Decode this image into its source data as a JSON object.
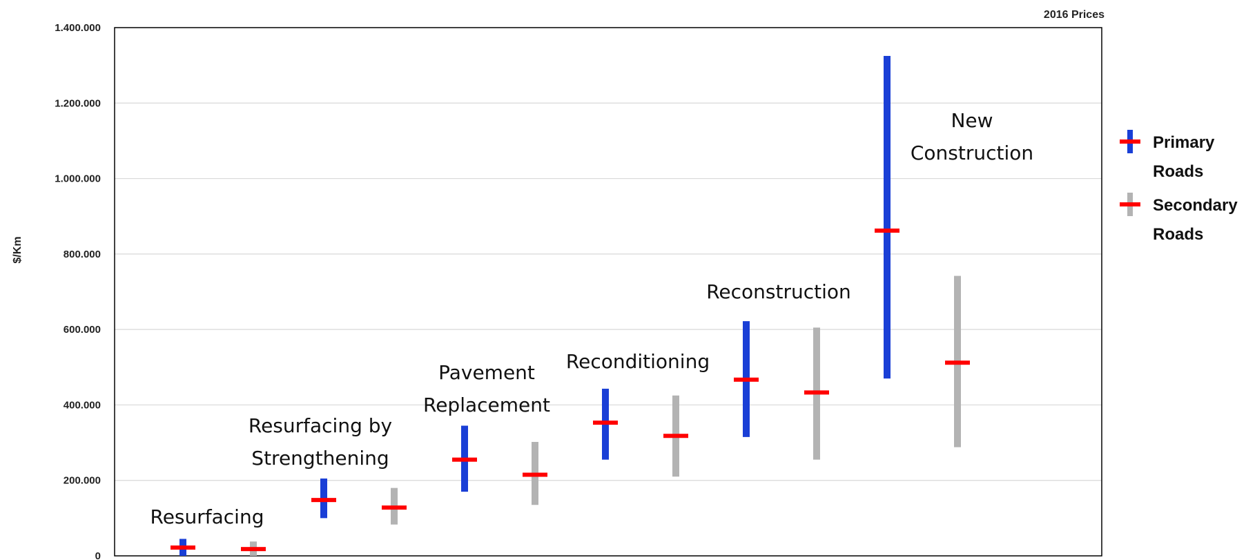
{
  "chart_data": {
    "type": "range-bar",
    "note": "2016 Prices",
    "ylabel": "$/Km",
    "ylim": [
      0,
      1400000
    ],
    "yticks": [
      0,
      200000,
      400000,
      600000,
      800000,
      1000000,
      1200000,
      1400000
    ],
    "ytick_labels": [
      "0",
      "200.000",
      "400.000",
      "600.000",
      "800.000",
      "1.000.000",
      "1.200.000",
      "1.400.000"
    ],
    "grid": true,
    "legend_position": "right",
    "colors": {
      "primary": "#1a3fd6",
      "secondary": "#b3b3b3",
      "marker": "#ff0000"
    },
    "groups": [
      {
        "label_lines": [
          "Resurfacing"
        ],
        "primary": {
          "min": 0,
          "max": 45000,
          "mean": 22000
        },
        "secondary": {
          "min": 0,
          "max": 38000,
          "mean": 18000
        }
      },
      {
        "label_lines": [
          "Resurfacing by",
          "Strengthening"
        ],
        "primary": {
          "min": 100000,
          "max": 205000,
          "mean": 148000
        },
        "secondary": {
          "min": 83000,
          "max": 180000,
          "mean": 128000
        }
      },
      {
        "label_lines": [
          "Pavement",
          "Replacement"
        ],
        "primary": {
          "min": 170000,
          "max": 345000,
          "mean": 255000
        },
        "secondary": {
          "min": 135000,
          "max": 302000,
          "mean": 215000
        }
      },
      {
        "label_lines": [
          "Reconditioning"
        ],
        "primary": {
          "min": 255000,
          "max": 443000,
          "mean": 353000
        },
        "secondary": {
          "min": 210000,
          "max": 425000,
          "mean": 318000
        }
      },
      {
        "label_lines": [
          "Reconstruction"
        ],
        "primary": {
          "min": 315000,
          "max": 622000,
          "mean": 467000
        },
        "secondary": {
          "min": 255000,
          "max": 605000,
          "mean": 433000
        }
      },
      {
        "label_lines": [
          "New",
          "Construction"
        ],
        "primary": {
          "min": 470000,
          "max": 1325000,
          "mean": 862000
        },
        "secondary": {
          "min": 288000,
          "max": 742000,
          "mean": 512000
        }
      }
    ],
    "legend": [
      {
        "key": "primary",
        "label_lines": [
          "Primary",
          "Roads"
        ]
      },
      {
        "key": "secondary",
        "label_lines": [
          "Secondary",
          "Roads"
        ]
      }
    ]
  }
}
